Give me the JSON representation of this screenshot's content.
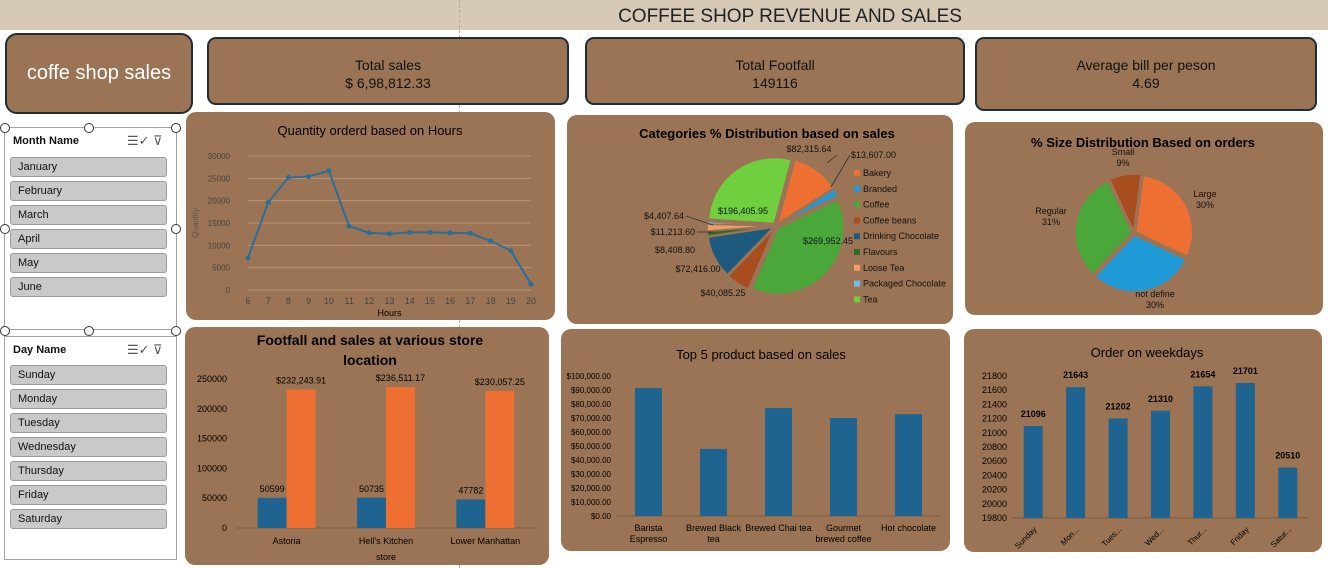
{
  "header": {
    "title": "COFFEE SHOP REVENUE AND SALES"
  },
  "brand": {
    "label": "coffe shop sales"
  },
  "kpis": [
    {
      "label": "Total sales",
      "value": "$ 6,98,812.33"
    },
    {
      "label": "Total Footfall",
      "value": "149116"
    },
    {
      "label": "Average bill per peson",
      "value": "4.69"
    }
  ],
  "slicers": {
    "month": {
      "title": "Month Name",
      "items": [
        "January",
        "February",
        "March",
        "April",
        "May",
        "June"
      ]
    },
    "day": {
      "title": "Day Name",
      "items": [
        "Sunday",
        "Monday",
        "Tuesday",
        "Wednesday",
        "Thursday",
        "Friday",
        "Saturday"
      ]
    }
  },
  "colors": {
    "panel": "#9b7455",
    "blue": "#1f6391",
    "orange": "#ed7032",
    "lineblue": "#2a6e9a"
  },
  "chart_data": [
    {
      "id": "hours",
      "type": "line",
      "title": "Quantity orderd based on Hours",
      "xlabel": "Hours",
      "ylabel": "Quantity",
      "x": [
        6,
        7,
        8,
        9,
        10,
        11,
        12,
        13,
        14,
        15,
        16,
        17,
        18,
        19,
        20
      ],
      "values": [
        7200,
        19600,
        25200,
        25400,
        26700,
        14300,
        12800,
        12600,
        12900,
        12900,
        12800,
        12700,
        11000,
        8800,
        1300
      ],
      "yticks": [
        0,
        5000,
        10000,
        15000,
        20000,
        25000,
        30000
      ],
      "ylim": [
        0,
        30000
      ]
    },
    {
      "id": "categories",
      "type": "pie",
      "title": "Categories % Distribution based on sales",
      "slices": [
        {
          "name": "Bakery",
          "value": 82315.64,
          "label": "$82,315.64",
          "color": "#ed7032"
        },
        {
          "name": "Branded",
          "value": 13607.0,
          "label": "$13,607.00",
          "color": "#1f9ad6"
        },
        {
          "name": "Coffee",
          "value": 269952.45,
          "label": "$269,952.45",
          "color": "#4aa83a"
        },
        {
          "name": "Coffee beans",
          "value": 40085.25,
          "label": "$40,085.25",
          "color": "#a84d1e"
        },
        {
          "name": "Drinking Chocolate",
          "value": 72416.0,
          "label": "$72,416.00",
          "color": "#1d5a7e"
        },
        {
          "name": "Flavours",
          "value": 8408.8,
          "label": "$8,408.80",
          "color": "#2d6b23"
        },
        {
          "name": "Loose Tea",
          "value": 11213.6,
          "label": "$11,213.60",
          "color": "#f39b6b"
        },
        {
          "name": "Packaged Chocolate",
          "value": 4407.64,
          "label": "$4,407.64",
          "color": "#6cc0e8"
        },
        {
          "name": "Tea",
          "value": 196405.95,
          "label": "$196,405.95",
          "color": "#6fcf3f"
        }
      ]
    },
    {
      "id": "sizes",
      "type": "pie",
      "title": "% Size Distribution Based on orders",
      "slices": [
        {
          "name": "Small",
          "value": 9,
          "label": "Small\n9%",
          "color": "#a84d1e"
        },
        {
          "name": "Large",
          "value": 30,
          "label": "Large\n30%",
          "color": "#ed7032"
        },
        {
          "name": "not define",
          "value": 30,
          "label": "not define\n30%",
          "color": "#1f9ad6"
        },
        {
          "name": "Regular",
          "value": 31,
          "label": "Regular\n31%",
          "color": "#4aa83a"
        }
      ]
    },
    {
      "id": "stores",
      "type": "bar",
      "title": "Footfall and sales at various store location",
      "xlabel": "store",
      "categories": [
        "Astoria",
        "Hell's Kitchen",
        "Lower Manhattan"
      ],
      "series": [
        {
          "values": [
            50599,
            50735,
            47782
          ],
          "labels": [
            "50599",
            "50735",
            "47782"
          ],
          "color": "#1f6391"
        },
        {
          "values": [
            232243.91,
            236511.17,
            230057.25
          ],
          "labels": [
            "$232,243.91",
            "$236,511.17",
            "$230,057.25"
          ],
          "color": "#ed7032"
        }
      ],
      "yticks": [
        0,
        50000,
        100000,
        150000,
        200000,
        250000
      ],
      "ylim": [
        0,
        250000
      ]
    },
    {
      "id": "products",
      "type": "bar",
      "title": "Top  5 product based on sales",
      "categories": [
        "Barista Espresso",
        "Brewed Black tea",
        "Brewed Chai tea",
        "Gourmet brewed coffee",
        "Hot chocolate"
      ],
      "values": [
        91400,
        47900,
        77100,
        70000,
        72700
      ],
      "yticks": [
        "$0.00",
        "$10,000.00",
        "$20,000.00",
        "$30,000.00",
        "$40,000.00",
        "$50,000.00",
        "$60,000.00",
        "$70,000.00",
        "$80,000.00",
        "$90,000.00",
        "$100,000.00"
      ],
      "ylim": [
        0,
        100000
      ]
    },
    {
      "id": "weekdays",
      "type": "bar",
      "title": "Order on weekdays",
      "categories": [
        "Sunday",
        "Mon...",
        "Tues...",
        "Wed...",
        "Thur...",
        "Friday",
        "Satur..."
      ],
      "values": [
        21096,
        21643,
        21202,
        21310,
        21654,
        21701,
        20510
      ],
      "yticks": [
        19800,
        20000,
        20200,
        20400,
        20600,
        20800,
        21000,
        21200,
        21400,
        21600,
        21800
      ],
      "ylim": [
        19800,
        21800
      ]
    }
  ]
}
